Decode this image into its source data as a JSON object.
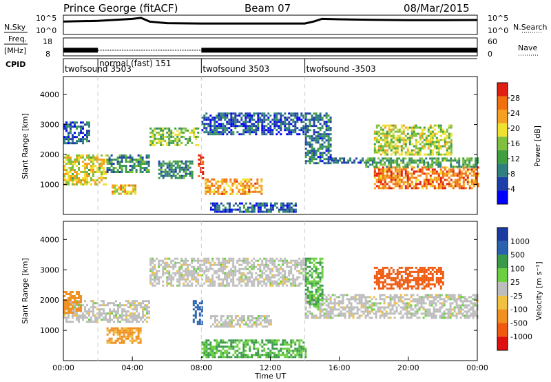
{
  "header": {
    "station": "Prince George (fitACF)",
    "beam": "Beam 07",
    "date": "08/Mar/2015"
  },
  "left_labels": {
    "nsky": "N.Sky",
    "freq_line1": "Freq.",
    "freq_line2": "[MHz]",
    "cpid": "CPID"
  },
  "right_labels": {
    "nsearch": "N.Search",
    "nave": "Nave"
  },
  "colors": {
    "power_scale": [
      "#0000ff",
      "#1f3fa8",
      "#2f7f7f",
      "#3f9f3f",
      "#7fc03f",
      "#f0e030",
      "#f5a020",
      "#f07010",
      "#e02010"
    ],
    "velocity_scale": [
      "#1a3aa0",
      "#2a62b0",
      "#3a9a4a",
      "#6ad040",
      "#bdbdbd",
      "#f0c040",
      "#f09020",
      "#ef5a10",
      "#e01010"
    ]
  },
  "chart_data": [
    {
      "type": "line",
      "panel": "noise",
      "series": [
        {
          "name": "N.Sky",
          "x": [
            "00:00",
            "02:00",
            "04:00",
            "04:30",
            "05:00",
            "06:00",
            "08:00",
            "10:00",
            "12:00",
            "14:00",
            "14:30",
            "15:00",
            "16:00",
            "18:00",
            "20:00",
            "22:00",
            "24:00"
          ],
          "values": [
            3000,
            5000,
            20000,
            40000,
            3000,
            1000,
            800,
            800,
            800,
            800,
            3000,
            20000,
            15000,
            10000,
            8000,
            8000,
            9000
          ]
        }
      ],
      "y_ticks_left": [
        "10^5",
        "10^0"
      ],
      "y_ticks_right": [
        "10^5",
        "10^0"
      ],
      "ylim": [
        1,
        100000
      ],
      "log_scale": true
    },
    {
      "type": "line",
      "panel": "frequency",
      "series": [
        {
          "name": "Freq.",
          "x": [
            "00:00",
            "24:00"
          ],
          "values": [
            11,
            11
          ]
        }
      ],
      "y_ticks_left": [
        "18",
        "8"
      ],
      "y_ticks_right": [
        "60",
        "0"
      ],
      "ylim": [
        8,
        18
      ]
    },
    {
      "type": "table",
      "panel": "cpid",
      "segments": [
        {
          "label": "twofsound 3503",
          "start": "00:00",
          "end": "02:00"
        },
        {
          "label": "normal (fast) 151",
          "start": "02:00",
          "end": "08:00"
        },
        {
          "label": "twofsound 3503",
          "start": "08:00",
          "end": "14:00"
        },
        {
          "label": "twofsound -3503",
          "start": "14:00",
          "end": "24:00"
        }
      ]
    },
    {
      "type": "heatmap",
      "panel": "power",
      "ylabel": "Slant Range [km]",
      "yticks": [
        "1000",
        "2000",
        "3000",
        "4000"
      ],
      "ylim": [
        0,
        4600
      ],
      "xlim": [
        "00:00",
        "24:00"
      ],
      "xticks": [
        "00:00",
        "04:00",
        "08:00",
        "12:00",
        "16:00",
        "20:00",
        "00:00"
      ],
      "colorbar": {
        "label": "Power [dB]",
        "ticks": [
          "4",
          "8",
          "12",
          "16",
          "20",
          "24",
          "28"
        ],
        "range": [
          0,
          30
        ]
      },
      "bands": [
        {
          "t0": 0.0,
          "t1": 2.5,
          "r0": 1000,
          "r1": 2000,
          "value": 18
        },
        {
          "t0": 0.0,
          "t1": 1.5,
          "r0": 2400,
          "r1": 3100,
          "value": 6
        },
        {
          "t0": 2.5,
          "t1": 5.0,
          "r0": 1400,
          "r1": 2000,
          "value": 10
        },
        {
          "t0": 2.8,
          "t1": 4.2,
          "r0": 700,
          "r1": 1000,
          "value": 20
        },
        {
          "t0": 5.0,
          "t1": 7.8,
          "r0": 2300,
          "r1": 2900,
          "value": 14
        },
        {
          "t0": 5.5,
          "t1": 7.5,
          "r0": 1200,
          "r1": 1800,
          "value": 9
        },
        {
          "t0": 7.8,
          "t1": 8.1,
          "r0": 1200,
          "r1": 2000,
          "value": 28
        },
        {
          "t0": 8.2,
          "t1": 11.5,
          "r0": 700,
          "r1": 1200,
          "value": 22
        },
        {
          "t0": 8.0,
          "t1": 14.0,
          "r0": 2700,
          "r1": 3400,
          "value": 6
        },
        {
          "t0": 8.5,
          "t1": 13.5,
          "r0": 100,
          "r1": 400,
          "value": 6
        },
        {
          "t0": 14.0,
          "t1": 15.5,
          "r0": 1700,
          "r1": 3400,
          "value": 8
        },
        {
          "t0": 15.5,
          "t1": 18.0,
          "r0": 1700,
          "r1": 1900,
          "value": 8
        },
        {
          "t0": 18.0,
          "t1": 24.0,
          "r0": 900,
          "r1": 1600,
          "value": 24
        },
        {
          "t0": 18.0,
          "t1": 22.5,
          "r0": 2000,
          "r1": 3000,
          "value": 16
        },
        {
          "t0": 17.5,
          "t1": 24.0,
          "r0": 1600,
          "r1": 1900,
          "value": 12
        }
      ]
    },
    {
      "type": "heatmap",
      "panel": "velocity",
      "ylabel": "Slant Range [km]",
      "yticks": [
        "1000",
        "2000",
        "3000",
        "4000"
      ],
      "ylim": [
        0,
        4600
      ],
      "xlim": [
        "00:00",
        "24:00"
      ],
      "xticks": [
        "00:00",
        "04:00",
        "08:00",
        "12:00",
        "16:00",
        "20:00",
        "00:00"
      ],
      "xlabel": "Time UT",
      "colorbar": {
        "label": "Velocity [m s⁻¹]",
        "ticks": [
          "1000",
          "500",
          "100",
          "25",
          "-25",
          "-100",
          "-500",
          "-1000"
        ]
      },
      "bands": [
        {
          "t0": 0.0,
          "t1": 5.0,
          "r0": 1300,
          "r1": 2000,
          "value": 0
        },
        {
          "t0": 0.0,
          "t1": 1.0,
          "r0": 1600,
          "r1": 2300,
          "value": -150
        },
        {
          "t0": 2.5,
          "t1": 4.5,
          "r0": 600,
          "r1": 1100,
          "value": -120
        },
        {
          "t0": 5.0,
          "t1": 14.0,
          "r0": 2500,
          "r1": 3400,
          "value": 0
        },
        {
          "t0": 7.5,
          "t1": 8.0,
          "r0": 1200,
          "r1": 2000,
          "value": 800
        },
        {
          "t0": 8.5,
          "t1": 12.0,
          "r0": 1100,
          "r1": 1500,
          "value": 0
        },
        {
          "t0": 8.0,
          "t1": 14.0,
          "r0": 100,
          "r1": 700,
          "value": 100
        },
        {
          "t0": 14.0,
          "t1": 24.0,
          "r0": 1400,
          "r1": 2200,
          "value": 0
        },
        {
          "t0": 18.0,
          "t1": 22.0,
          "r0": 2400,
          "r1": 3100,
          "value": -700
        },
        {
          "t0": 14.0,
          "t1": 15.0,
          "r0": 1800,
          "r1": 3400,
          "value": 100
        }
      ]
    }
  ]
}
